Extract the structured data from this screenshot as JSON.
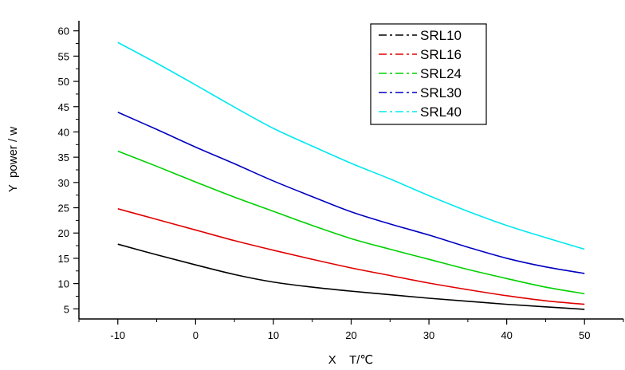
{
  "chart_data": {
    "type": "line",
    "xlabel": "X    T/℃",
    "ylabel": "Y  power / w",
    "xlim": [
      -15,
      55
    ],
    "ylim": [
      3,
      62
    ],
    "x_ticks": [
      -10,
      0,
      10,
      20,
      30,
      40,
      50
    ],
    "y_ticks": [
      5,
      10,
      15,
      20,
      25,
      30,
      35,
      40,
      45,
      50,
      55,
      60
    ],
    "grid": false,
    "legend_position": "top-right",
    "x": [
      -10,
      -5,
      0,
      5,
      10,
      15,
      20,
      25,
      30,
      35,
      40,
      45,
      50
    ],
    "series": [
      {
        "name": "SRL10",
        "color": "#000000",
        "values": [
          17.8,
          15.7,
          13.7,
          11.8,
          10.3,
          9.3,
          8.5,
          7.8,
          7.1,
          6.5,
          5.9,
          5.4,
          4.9
        ]
      },
      {
        "name": "SRL16",
        "color": "#e00000",
        "values": [
          24.8,
          22.7,
          20.6,
          18.5,
          16.6,
          14.8,
          13.1,
          11.6,
          10.1,
          8.8,
          7.6,
          6.6,
          5.9
        ]
      },
      {
        "name": "SRL24",
        "color": "#00d000",
        "values": [
          36.2,
          33.2,
          30.1,
          27.1,
          24.3,
          21.5,
          18.9,
          16.8,
          14.8,
          12.8,
          11.0,
          9.3,
          8.0
        ]
      },
      {
        "name": "SRL30",
        "color": "#0000c0",
        "values": [
          43.9,
          40.5,
          37.0,
          33.7,
          30.3,
          27.2,
          24.2,
          21.8,
          19.6,
          17.2,
          15.0,
          13.3,
          12.0
        ]
      },
      {
        "name": "SRL40",
        "color": "#00e8f0",
        "values": [
          57.7,
          53.6,
          49.3,
          44.9,
          40.7,
          37.2,
          33.8,
          30.7,
          27.4,
          24.3,
          21.5,
          19.1,
          16.8
        ]
      }
    ]
  }
}
